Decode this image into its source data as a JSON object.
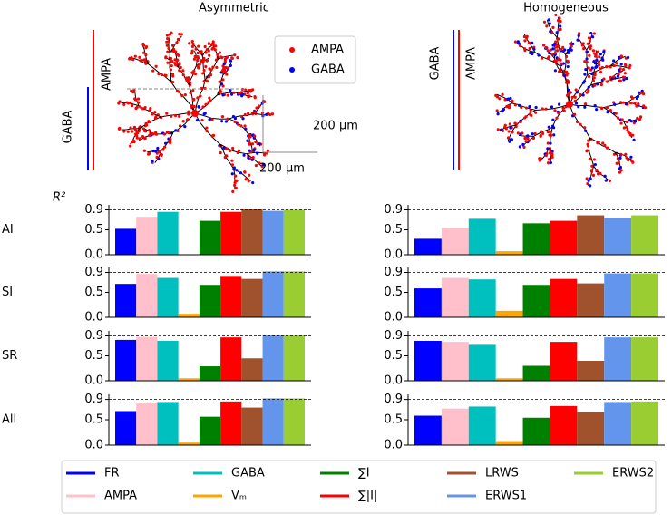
{
  "figure": {
    "morphology": [
      {
        "title": "Asymmetric",
        "bar_labels": [
          "GABA",
          "AMPA"
        ],
        "scale_labels": [
          "200 μm",
          "200 μm"
        ]
      },
      {
        "title": "Homogeneous",
        "bar_labels": [
          "GABA",
          "AMPA"
        ]
      }
    ],
    "synapse_legend": [
      {
        "name": "AMPA",
        "color": "#ff0000"
      },
      {
        "name": "GABA",
        "color": "#0000ff"
      }
    ],
    "legend": {
      "names": [
        "FR",
        "AMPA",
        "GABA",
        "Vₘ",
        "∑I",
        "∑|I|",
        "LRWS",
        "ERWS1",
        "ERWS2"
      ],
      "colors": [
        "#0000ff",
        "#ffc0cb",
        "#00bfbf",
        "#ffa500",
        "#008000",
        "#ff0000",
        "#a0522d",
        "#6495ed",
        "#9acd32"
      ]
    }
  },
  "chart_data": [
    {
      "type": "bar",
      "row_label": "AI",
      "ylabel": "R²",
      "values": [
        0.52,
        0.76,
        0.86,
        0,
        0.68,
        0.86,
        0.92,
        0.88,
        0.9
      ],
      "ylim": [
        0,
        1.0
      ],
      "yticks": [
        {
          "value": 0,
          "label": "0.0"
        },
        0.5,
        0.9
      ],
      "reference_line": 0.9
    },
    {
      "type": "bar",
      "values": [
        0.32,
        0.54,
        0.72,
        0.07,
        0.63,
        0.68,
        0.79,
        0.74,
        0.79
      ],
      "ylim": [
        0,
        1.0
      ],
      "yticks": [
        {
          "value": 0,
          "label": "0.0"
        },
        0.5,
        0.9
      ],
      "reference_line": 0.9
    },
    {
      "type": "bar",
      "row_label": "SI",
      "values": [
        0.67,
        0.87,
        0.79,
        0.07,
        0.65,
        0.83,
        0.77,
        0.92,
        0.92
      ],
      "ylim": [
        0,
        1.0
      ],
      "yticks": [
        {
          "value": 0,
          "label": "0.0"
        },
        0.5,
        0.9
      ],
      "reference_line": 0.9
    },
    {
      "type": "bar",
      "values": [
        0.58,
        0.79,
        0.76,
        0.13,
        0.65,
        0.77,
        0.68,
        0.88,
        0.88
      ],
      "ylim": [
        0,
        1.0
      ],
      "yticks": [
        {
          "value": 0,
          "label": "0.0"
        },
        0.5,
        0.9
      ],
      "reference_line": 0.9
    },
    {
      "type": "bar",
      "row_label": "SR",
      "values": [
        0.82,
        0.88,
        0.8,
        0.05,
        0.29,
        0.87,
        0.45,
        0.92,
        0.92
      ],
      "ylim": [
        0,
        1.0
      ],
      "yticks": [
        {
          "value": 0,
          "label": "0.0"
        },
        0.5,
        0.9
      ],
      "reference_line": 0.9
    },
    {
      "type": "bar",
      "values": [
        0.8,
        0.78,
        0.72,
        0.05,
        0.3,
        0.78,
        0.4,
        0.87,
        0.87
      ],
      "ylim": [
        0,
        1.0
      ],
      "yticks": [
        {
          "value": 0,
          "label": "0.0"
        },
        0.5,
        0.9
      ],
      "reference_line": 0.9
    },
    {
      "type": "bar",
      "row_label": "All",
      "values": [
        0.67,
        0.83,
        0.85,
        0.05,
        0.56,
        0.86,
        0.74,
        0.92,
        0.92
      ],
      "ylim": [
        0,
        1.0
      ],
      "yticks": [
        {
          "value": 0,
          "label": "0.0"
        },
        0.5,
        0.9
      ],
      "reference_line": 0.9
    },
    {
      "type": "bar",
      "values": [
        0.58,
        0.72,
        0.76,
        0.08,
        0.54,
        0.77,
        0.65,
        0.85,
        0.86
      ],
      "ylim": [
        0,
        1.0
      ],
      "yticks": [
        {
          "value": 0,
          "label": "0.0"
        },
        0.5,
        0.9
      ],
      "reference_line": 0.9
    }
  ]
}
